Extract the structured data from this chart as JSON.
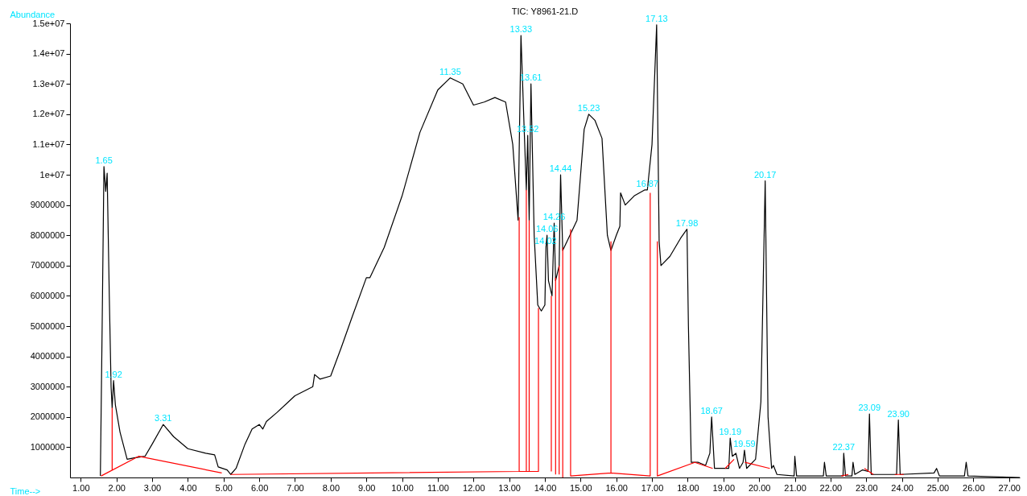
{
  "chart_data": {
    "type": "line",
    "title": "TIC: Y8961-21.D",
    "xlabel": "Time-->",
    "ylabel": "Abundance",
    "xlim": [
      0.7,
      27.3
    ],
    "ylim": [
      0,
      15000000
    ],
    "xticks": [
      {
        "value": 1,
        "label": "1.00"
      },
      {
        "value": 2,
        "label": "2.00"
      },
      {
        "value": 3,
        "label": "3.00"
      },
      {
        "value": 4,
        "label": "4.00"
      },
      {
        "value": 5,
        "label": "5.00"
      },
      {
        "value": 6,
        "label": "6.00"
      },
      {
        "value": 7,
        "label": "7.00"
      },
      {
        "value": 8,
        "label": "8.00"
      },
      {
        "value": 9,
        "label": "9.00"
      },
      {
        "value": 10,
        "label": "10.00"
      },
      {
        "value": 11,
        "label": "11.00"
      },
      {
        "value": 12,
        "label": "12.00"
      },
      {
        "value": 13,
        "label": "13.00"
      },
      {
        "value": 14,
        "label": "14.00"
      },
      {
        "value": 15,
        "label": "15.00"
      },
      {
        "value": 16,
        "label": "16.00"
      },
      {
        "value": 17,
        "label": "17.00"
      },
      {
        "value": 18,
        "label": "18.00"
      },
      {
        "value": 19,
        "label": "19.00"
      },
      {
        "value": 20,
        "label": "20.00"
      },
      {
        "value": 21,
        "label": "21.00"
      },
      {
        "value": 22,
        "label": "22.00"
      },
      {
        "value": 23,
        "label": "23.00"
      },
      {
        "value": 24,
        "label": "24.00"
      },
      {
        "value": 25,
        "label": "25.00"
      },
      {
        "value": 26,
        "label": "26.00"
      },
      {
        "value": 27,
        "label": "27.00"
      }
    ],
    "yticks": [
      1000000,
      2000000,
      3000000,
      4000000,
      5000000,
      6000000,
      7000000,
      8000000,
      9000000,
      {
        "value": 10000000,
        "label": "1e+07"
      },
      {
        "value": 11000000,
        "label": "1.1e+07"
      },
      {
        "value": 12000000,
        "label": "1.2e+07"
      },
      {
        "value": 13000000,
        "label": "1.3e+07"
      },
      {
        "value": 14000000,
        "label": "1.4e+07"
      },
      {
        "value": 15000000,
        "label": "1.5e+07"
      }
    ],
    "grid": false,
    "series": [
      {
        "color": "#000000",
        "x": [
          1.55,
          1.6,
          1.65,
          1.7,
          1.74,
          1.8,
          1.85,
          1.88,
          1.92,
          1.97,
          2.1,
          2.3,
          2.5,
          2.8,
          3.0,
          3.31,
          3.6,
          4.0,
          4.5,
          4.75,
          4.85,
          5.1,
          5.2,
          5.35,
          5.6,
          5.8,
          6.0,
          6.1,
          6.2,
          6.5,
          7.0,
          7.5,
          7.55,
          7.7,
          8.0,
          8.3,
          8.6,
          9.0,
          9.1,
          9.5,
          10.0,
          10.5,
          11.0,
          11.35,
          11.7,
          12.0,
          12.3,
          12.6,
          12.9,
          13.1,
          13.25,
          13.33,
          13.42,
          13.48,
          13.52,
          13.56,
          13.61,
          13.7,
          13.8,
          13.9,
          14.0,
          14.03,
          14.06,
          14.1,
          14.2,
          14.26,
          14.3,
          14.4,
          14.44,
          14.5,
          14.7,
          14.9,
          15.0,
          15.1,
          15.23,
          15.4,
          15.6,
          15.75,
          15.85,
          16.0,
          16.1,
          16.12,
          16.25,
          16.5,
          16.8,
          16.87,
          17.0,
          17.13,
          17.2,
          17.25,
          17.5,
          17.8,
          17.98,
          18.02,
          18.1,
          18.3,
          18.5,
          18.62,
          18.67,
          18.75,
          19.0,
          19.15,
          19.19,
          19.25,
          19.35,
          19.45,
          19.55,
          19.59,
          19.65,
          19.9,
          20.05,
          20.17,
          20.25,
          20.35,
          20.4,
          20.5,
          20.98,
          21.0,
          21.05,
          21.8,
          21.83,
          21.88,
          22.35,
          22.37,
          22.42,
          22.6,
          22.63,
          22.68,
          22.9,
          23.05,
          23.09,
          23.14,
          23.85,
          23.9,
          23.95,
          24.9,
          24.97,
          25.05,
          25.75,
          25.8,
          25.85,
          27.3
        ],
        "values": [
          50000.0,
          5000000.0,
          10270000.0,
          9450000.0,
          10050000.0,
          6000000.0,
          3000000.0,
          2300000.0,
          3200000.0,
          2400000.0,
          1500000.0,
          600000.0,
          650000.0,
          700000.0,
          1100000.0,
          1750000.0,
          1350000.0,
          950000.0,
          800000.0,
          750000.0,
          350000.0,
          250000.0,
          100000.0,
          300000.0,
          1100000.0,
          1600000.0,
          1750000.0,
          1600000.0,
          1850000.0,
          2150000.0,
          2700000.0,
          3000000.0,
          3400000.0,
          3250000.0,
          3350000.0,
          4300000.0,
          5300000.0,
          6600000.0,
          6600000.0,
          7600000.0,
          9300000.0,
          11400000.0,
          12800000.0,
          13200000.0,
          13000000.0,
          12300000.0,
          12400000.0,
          12550000.0,
          12400000.0,
          11000000.0,
          8500000.0,
          14600000.0,
          11500000.0,
          9500000.0,
          11300000.0,
          8500000.0,
          13000000.0,
          8000000.0,
          5700000.0,
          5500000.0,
          5700000.0,
          7600000.0,
          8000000.0,
          6500000.0,
          6000000.0,
          8400000.0,
          6500000.0,
          7000000.0,
          10000000.0,
          7500000.0,
          8000000.0,
          8500000.0,
          10000000.0,
          11500000.0,
          12000000.0,
          11800000.0,
          11200000.0,
          8000000.0,
          7500000.0,
          8000000.0,
          8300000.0,
          9400000.0,
          9000000.0,
          9300000.0,
          9500000.0,
          9500000.0,
          11000000.0,
          14950000.0,
          7800000.0,
          7000000.0,
          7300000.0,
          7900000.0,
          8200000.0,
          5000000.0,
          500000.0,
          500000.0,
          400000.0,
          800000.0,
          2000000.0,
          300000.0,
          300000.0,
          300000.0,
          1300000.0,
          700000.0,
          800000.0,
          300000.0,
          500000.0,
          900000.0,
          300000.0,
          600000.0,
          2500000.0,
          9800000.0,
          2000000.0,
          300000.0,
          400000.0,
          100000.0,
          50000.0,
          700000.0,
          50000.0,
          50000.0,
          500000.0,
          50000.0,
          50000.0,
          800000.0,
          50000.0,
          50000.0,
          500000.0,
          100000.0,
          250000.0,
          200000.0,
          2100000.0,
          100000.0,
          100000.0,
          1900000.0,
          100000.0,
          150000.0,
          300000.0,
          50000.0,
          50000.0,
          500000.0,
          50000.0,
          0.0
        ]
      },
      {
        "color": "#ff0000",
        "x": [
          1.57,
          2.62,
          4.95,
          null,
          1.88,
          1.88,
          null,
          5.2,
          13.28,
          13.82,
          13.82,
          null,
          13.28,
          13.28,
          null,
          13.48,
          13.48,
          null,
          13.56,
          13.56,
          null,
          14.18,
          14.18,
          null,
          14.3,
          14.3,
          null,
          14.4,
          14.4,
          null,
          14.5,
          14.5,
          null,
          14.72,
          14.72,
          15.85,
          15.85,
          null,
          15.85,
          16.95,
          16.95,
          null,
          17.15,
          17.15,
          18.2,
          18.7,
          null,
          19.05,
          19.3,
          null,
          19.6,
          20.3,
          null,
          22.3,
          22.5,
          null,
          22.95,
          23.2,
          null,
          23.8,
          24.05
        ],
        "values": [
          50000.0,
          700000.0,
          150000.0,
          null,
          250000.0,
          2300000.0,
          null,
          100000.0,
          200000.0,
          200000.0,
          5600000.0,
          null,
          200000.0,
          8600000.0,
          null,
          200000.0,
          9500000.0,
          null,
          200000.0,
          8500000.0,
          null,
          200000.0,
          6000000.0,
          null,
          100000.0,
          6600000.0,
          null,
          100000.0,
          7000000.0,
          null,
          0.0,
          7600000.0,
          null,
          8200000.0,
          50000.0,
          150000.0,
          7800000.0,
          null,
          150000.0,
          50000.0,
          9400000.0,
          null,
          7800000.0,
          50000.0,
          500000.0,
          300000.0,
          null,
          300000.0,
          600000.0,
          null,
          500000.0,
          300000.0,
          null,
          50000.0,
          100000.0,
          null,
          300000.0,
          100000.0,
          null,
          100000.0,
          100000.0
        ]
      }
    ],
    "annotations": [
      {
        "text": "1.65",
        "x": 1.65,
        "y": 10270000
      },
      {
        "text": "1.92",
        "x": 1.92,
        "y": 3200000
      },
      {
        "text": "3.31",
        "x": 3.31,
        "y": 1750000
      },
      {
        "text": "11.35",
        "x": 11.35,
        "y": 13200000
      },
      {
        "text": "13.33",
        "x": 13.33,
        "y": 14600000
      },
      {
        "text": "13.52",
        "x": 13.52,
        "y": 11300000
      },
      {
        "text": "13.61",
        "x": 13.61,
        "y": 13000000
      },
      {
        "text": "14.02",
        "x": 14.02,
        "y": 7600000
      },
      {
        "text": "14.06",
        "x": 14.06,
        "y": 8000000
      },
      {
        "text": "14.26",
        "x": 14.26,
        "y": 8400000
      },
      {
        "text": "14.44",
        "x": 14.44,
        "y": 10000000
      },
      {
        "text": "15.23",
        "x": 15.23,
        "y": 12000000
      },
      {
        "text": "16.87",
        "x": 16.87,
        "y": 9500000
      },
      {
        "text": "17.13",
        "x": 17.13,
        "y": 14950000
      },
      {
        "text": "17.98",
        "x": 17.98,
        "y": 8200000
      },
      {
        "text": "18.67",
        "x": 18.67,
        "y": 2000000
      },
      {
        "text": "19.19",
        "x": 19.19,
        "y": 1300000
      },
      {
        "text": "19.59",
        "x": 19.59,
        "y": 900000
      },
      {
        "text": "20.17",
        "x": 20.17,
        "y": 9800000
      },
      {
        "text": "22.37",
        "x": 22.37,
        "y": 800000
      },
      {
        "text": "23.09",
        "x": 23.09,
        "y": 2100000
      },
      {
        "text": "23.90",
        "x": 23.9,
        "y": 1900000
      }
    ]
  }
}
